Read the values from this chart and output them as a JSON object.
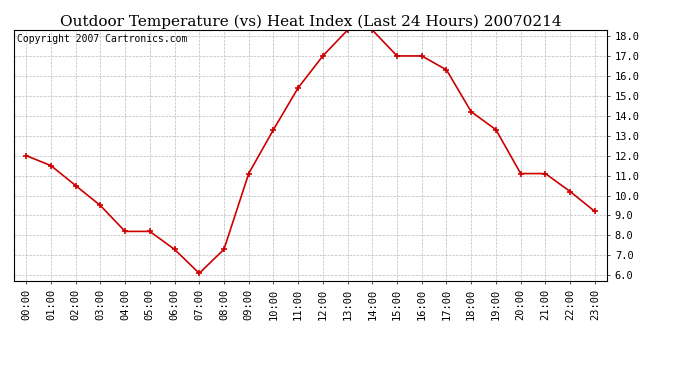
{
  "title": "Outdoor Temperature (vs) Heat Index (Last 24 Hours) 20070214",
  "copyright": "Copyright 2007 Cartronics.com",
  "x_labels": [
    "00:00",
    "01:00",
    "02:00",
    "03:00",
    "04:00",
    "05:00",
    "06:00",
    "07:00",
    "08:00",
    "09:00",
    "10:00",
    "11:00",
    "12:00",
    "13:00",
    "14:00",
    "15:00",
    "16:00",
    "17:00",
    "18:00",
    "19:00",
    "20:00",
    "21:00",
    "22:00",
    "23:00"
  ],
  "y_values": [
    12.0,
    11.5,
    10.5,
    9.5,
    8.2,
    8.2,
    7.3,
    6.1,
    7.3,
    11.1,
    13.3,
    15.4,
    17.0,
    18.3,
    18.3,
    17.0,
    17.0,
    16.3,
    14.2,
    13.3,
    11.1,
    11.1,
    10.2,
    9.2
  ],
  "line_color": "#cc0000",
  "marker": "+",
  "marker_size": 5,
  "marker_linewidth": 1.2,
  "background_color": "#ffffff",
  "grid_color": "#bbbbbb",
  "ylim_min": 6.0,
  "ylim_max": 18.0,
  "yticks": [
    6.0,
    7.0,
    8.0,
    9.0,
    10.0,
    11.0,
    12.0,
    13.0,
    14.0,
    15.0,
    16.0,
    17.0,
    18.0
  ],
  "title_fontsize": 11,
  "copyright_fontsize": 7,
  "tick_fontsize": 7.5
}
